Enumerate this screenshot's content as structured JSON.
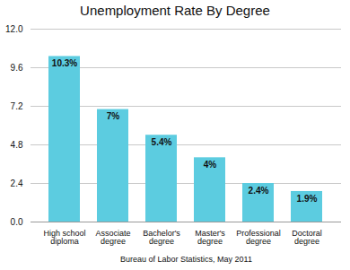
{
  "chart_data": {
    "type": "bar",
    "title": "Unemployment Rate By Degree",
    "xlabel": "Bureau of Labor Statistics, May 2011",
    "categories": [
      "High school\ndiploma",
      "Associate\ndegree",
      "Bachelor's\ndegree",
      "Master's\ndegree",
      "Professional\ndegree",
      "Doctoral\ndegree"
    ],
    "values": [
      10.3,
      7.0,
      5.4,
      4.0,
      2.4,
      1.9
    ],
    "value_labels": [
      "10.3%",
      "7%",
      "5.4%",
      "4%",
      "2.4%",
      "1.9%"
    ],
    "color": "#5ccce0",
    "ylim": [
      0,
      12
    ],
    "yticks": [
      {
        "value": 0,
        "label": "0.0"
      },
      2.4,
      4.8,
      7.2,
      9.6,
      {
        "value": 12,
        "label": "12.0"
      }
    ],
    "grid": true,
    "data_labels": true
  }
}
